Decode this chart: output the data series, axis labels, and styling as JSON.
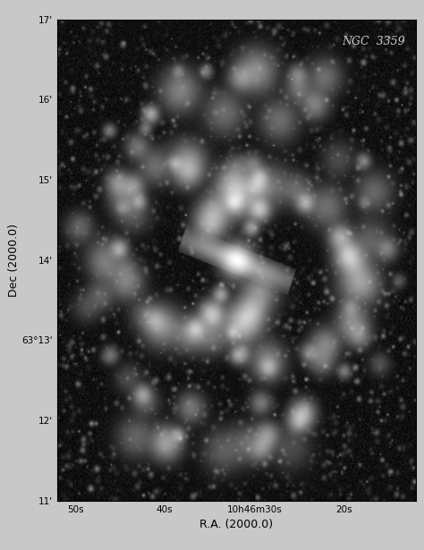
{
  "title": "NGC 3359",
  "xlabel": "R.A. (2000.0)",
  "ylabel": "Dec (2000.0)",
  "bg_color": "#0d0d0d",
  "fig_bg": "#c8c8c8",
  "ra_ticks": [
    "50s",
    "40s",
    "10h46m30s",
    "20s"
  ],
  "dec_ticks": [
    "17'",
    "16'",
    "15'",
    "14'",
    "63°13'",
    "12'",
    "11'"
  ],
  "annotation": "NGC  3359",
  "figsize": [
    4.74,
    6.15
  ],
  "dpi": 100,
  "seed": 42,
  "num_stars": 2500
}
